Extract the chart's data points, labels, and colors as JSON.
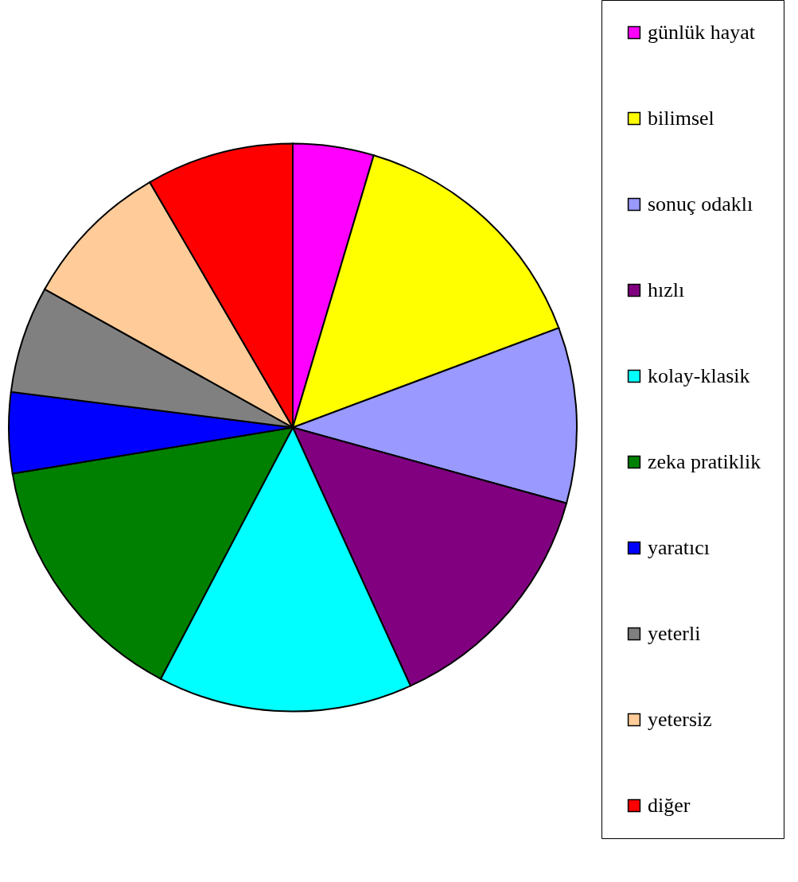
{
  "chart_data": {
    "type": "pie",
    "categories": [
      "günlük hayat",
      "bilimsel",
      "sonuç odaklı",
      "hızlı",
      "kolay-klasik",
      "zeka pratiklik",
      "yaratıcı",
      "yeterli",
      "yetersiz",
      "diğer"
    ],
    "values": [
      4.6,
      14.7,
      10.0,
      13.9,
      14.5,
      14.7,
      4.6,
      6.1,
      8.5,
      8.4
    ],
    "colors": [
      "#ff00ff",
      "#ffff00",
      "#9999ff",
      "#800080",
      "#00ffff",
      "#008000",
      "#0000ff",
      "#808080",
      "#ffcc99",
      "#ff0000"
    ],
    "legend": "right"
  }
}
